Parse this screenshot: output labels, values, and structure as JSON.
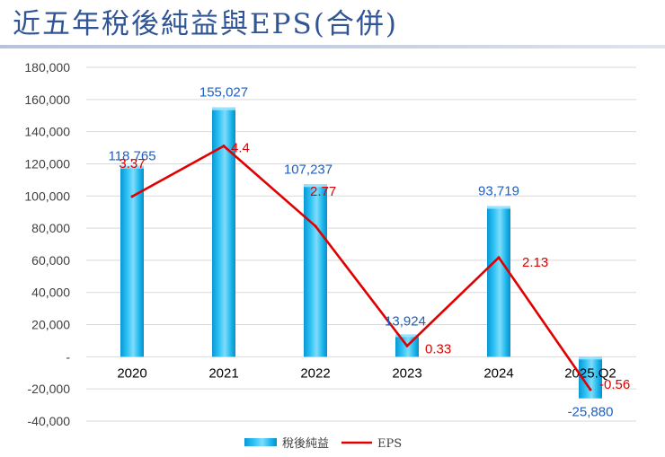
{
  "title": "近五年稅後純益與EPS(合併)",
  "chart_data": {
    "type": "bar",
    "title": "近五年稅後純益與EPS(合併)",
    "categories": [
      "2020",
      "2021",
      "2022",
      "2023",
      "2024",
      "2025.Q2"
    ],
    "series": [
      {
        "name": "稅後純益",
        "kind": "bar",
        "axis": "left",
        "color": "#00b0f0",
        "values": [
          118765,
          155027,
          107237,
          13924,
          93719,
          -25880
        ],
        "labels": [
          "118,765",
          "155,027",
          "107,237",
          "13,924",
          "93,719",
          "-25,880"
        ]
      },
      {
        "name": "EPS",
        "kind": "line",
        "axis": "right",
        "color": "#e00000",
        "values": [
          3.37,
          4.4,
          2.77,
          0.33,
          2.13,
          -0.56
        ],
        "labels": [
          "3.37",
          "4.4",
          "2.77",
          "0.33",
          "2.13",
          "-0.56"
        ]
      }
    ],
    "y_axis": {
      "range": [
        -40000,
        180000
      ],
      "ticks": [
        180000,
        160000,
        140000,
        120000,
        100000,
        80000,
        60000,
        40000,
        20000,
        0,
        -20000,
        -40000
      ],
      "tick_labels": [
        "180,000",
        "160,000",
        "140,000",
        "120,000",
        "100,000",
        "80,000",
        "60,000",
        "40,000",
        "20,000",
        "-",
        "-20,000",
        "-40,000"
      ]
    },
    "y2_axis": {
      "hidden": true,
      "range": [
        -1.2,
        6.0
      ]
    },
    "grid": true,
    "legend": "bottom-center"
  }
}
